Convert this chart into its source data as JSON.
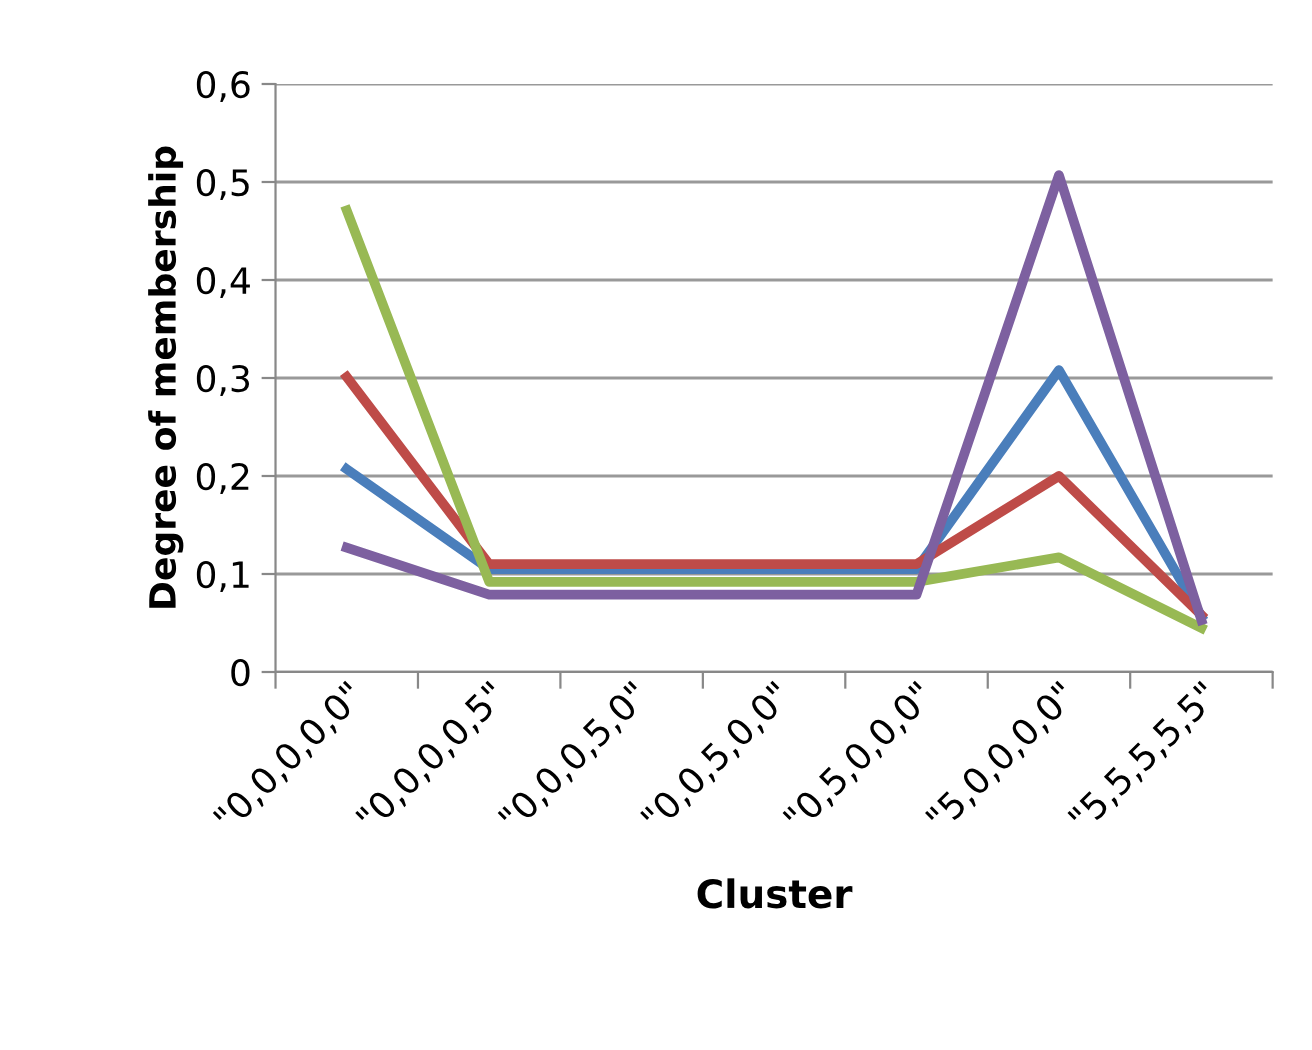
{
  "chart_data": {
    "type": "line",
    "xlabel": "Cluster",
    "ylabel": "Degree of membership",
    "categories": [
      "\"0,0,0,0,0\"",
      "\"0,0,0,0,5\"",
      "\"0,0,0,5,0\"",
      "\"0,0,5,0,0\"",
      "\"0,5,0,0,0\"",
      "\"5,0,0,0,0\"",
      "\"5,5,5,5,5\""
    ],
    "series": [
      {
        "color": "#4a7ebb",
        "values": [
          0.207,
          0.105,
          0.105,
          0.105,
          0.105,
          0.308,
          0.057
        ]
      },
      {
        "color": "#be4b48",
        "values": [
          0.301,
          0.11,
          0.11,
          0.11,
          0.11,
          0.2,
          0.058
        ]
      },
      {
        "color": "#98b954",
        "values": [
          0.471,
          0.092,
          0.092,
          0.092,
          0.092,
          0.117,
          0.045
        ]
      },
      {
        "color": "#7d60a0",
        "values": [
          0.127,
          0.079,
          0.079,
          0.079,
          0.079,
          0.507,
          0.053
        ]
      }
    ],
    "ylim": [
      0,
      0.6
    ],
    "yticks": [
      {
        "value": 0,
        "label": "0"
      },
      {
        "value": 0.1,
        "label": "0,1"
      },
      {
        "value": 0.2,
        "label": "0,2"
      },
      {
        "value": 0.3,
        "label": "0,3"
      },
      {
        "value": 0.4,
        "label": "0,4"
      },
      {
        "value": 0.5,
        "label": "0,5"
      },
      {
        "value": 0.6,
        "label": "0,6"
      }
    ],
    "grid": "y",
    "marker": "none",
    "line_style": "solid"
  }
}
